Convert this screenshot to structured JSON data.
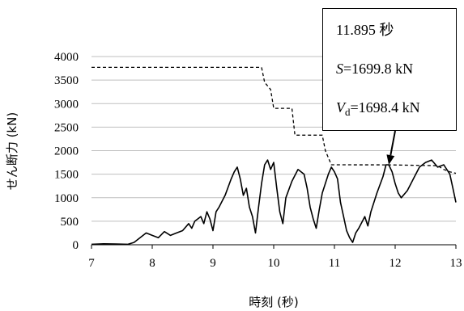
{
  "chart_data": {
    "type": "line",
    "xlabel": "時刻 (秒)",
    "ylabel": "せん断力 (kN)",
    "xlim": [
      7,
      13
    ],
    "ylim": [
      0,
      4000
    ],
    "x_ticks": [
      "7",
      "8",
      "9",
      "10",
      "11",
      "12",
      "13"
    ],
    "y_ticks": [
      "0",
      "500",
      "1000",
      "1500",
      "2000",
      "2500",
      "3000",
      "3500",
      "4000"
    ],
    "grid": "horizontal",
    "legend": "none",
    "series": [
      {
        "style": "solid",
        "color": "#000000",
        "points": [
          [
            7.0,
            10
          ],
          [
            7.2,
            20
          ],
          [
            7.4,
            15
          ],
          [
            7.6,
            10
          ],
          [
            7.7,
            50
          ],
          [
            7.8,
            150
          ],
          [
            7.9,
            250
          ],
          [
            8.0,
            200
          ],
          [
            8.1,
            150
          ],
          [
            8.2,
            280
          ],
          [
            8.3,
            200
          ],
          [
            8.4,
            250
          ],
          [
            8.5,
            300
          ],
          [
            8.6,
            450
          ],
          [
            8.65,
            350
          ],
          [
            8.7,
            500
          ],
          [
            8.8,
            600
          ],
          [
            8.85,
            450
          ],
          [
            8.9,
            700
          ],
          [
            8.95,
            550
          ],
          [
            9.0,
            300
          ],
          [
            9.05,
            700
          ],
          [
            9.1,
            800
          ],
          [
            9.2,
            1050
          ],
          [
            9.3,
            1400
          ],
          [
            9.35,
            1550
          ],
          [
            9.4,
            1650
          ],
          [
            9.45,
            1400
          ],
          [
            9.5,
            1050
          ],
          [
            9.55,
            1200
          ],
          [
            9.6,
            800
          ],
          [
            9.65,
            600
          ],
          [
            9.7,
            250
          ],
          [
            9.75,
            800
          ],
          [
            9.8,
            1300
          ],
          [
            9.85,
            1700
          ],
          [
            9.9,
            1800
          ],
          [
            9.95,
            1600
          ],
          [
            10.0,
            1750
          ],
          [
            10.05,
            1200
          ],
          [
            10.1,
            700
          ],
          [
            10.15,
            450
          ],
          [
            10.2,
            1000
          ],
          [
            10.3,
            1350
          ],
          [
            10.4,
            1600
          ],
          [
            10.5,
            1500
          ],
          [
            10.55,
            1200
          ],
          [
            10.6,
            800
          ],
          [
            10.65,
            550
          ],
          [
            10.7,
            350
          ],
          [
            10.75,
            750
          ],
          [
            10.8,
            1100
          ],
          [
            10.9,
            1500
          ],
          [
            10.95,
            1650
          ],
          [
            11.0,
            1550
          ],
          [
            11.05,
            1400
          ],
          [
            11.1,
            900
          ],
          [
            11.15,
            600
          ],
          [
            11.2,
            300
          ],
          [
            11.25,
            150
          ],
          [
            11.3,
            50
          ],
          [
            11.35,
            250
          ],
          [
            11.4,
            350
          ],
          [
            11.5,
            600
          ],
          [
            11.55,
            400
          ],
          [
            11.6,
            700
          ],
          [
            11.7,
            1100
          ],
          [
            11.8,
            1450
          ],
          [
            11.85,
            1700
          ],
          [
            11.895,
            1699.8
          ],
          [
            11.95,
            1550
          ],
          [
            12.0,
            1300
          ],
          [
            12.05,
            1100
          ],
          [
            12.1,
            1000
          ],
          [
            12.2,
            1150
          ],
          [
            12.3,
            1400
          ],
          [
            12.4,
            1650
          ],
          [
            12.5,
            1750
          ],
          [
            12.6,
            1800
          ],
          [
            12.7,
            1650
          ],
          [
            12.8,
            1700
          ],
          [
            12.9,
            1500
          ],
          [
            12.95,
            1200
          ],
          [
            13.0,
            900
          ]
        ]
      },
      {
        "style": "dashed",
        "color": "#000000",
        "points": [
          [
            7.0,
            3770
          ],
          [
            9.8,
            3770
          ],
          [
            9.85,
            3450
          ],
          [
            9.95,
            3300
          ],
          [
            10.0,
            2900
          ],
          [
            10.3,
            2900
          ],
          [
            10.35,
            2330
          ],
          [
            10.8,
            2330
          ],
          [
            10.85,
            2000
          ],
          [
            10.9,
            1850
          ],
          [
            10.95,
            1700
          ],
          [
            11.895,
            1698.4
          ],
          [
            12.7,
            1680
          ],
          [
            12.8,
            1600
          ],
          [
            12.9,
            1550
          ],
          [
            13.0,
            1520
          ]
        ]
      }
    ],
    "annotation": {
      "time_label": "11.895 秒",
      "s_label_var": "S",
      "s_label_value": "=1699.8 kN",
      "v_label_var": "V",
      "v_label_sub": "d",
      "v_label_value": "=1698.4 kN",
      "arrow_point": [
        11.895,
        1699.8
      ]
    }
  }
}
